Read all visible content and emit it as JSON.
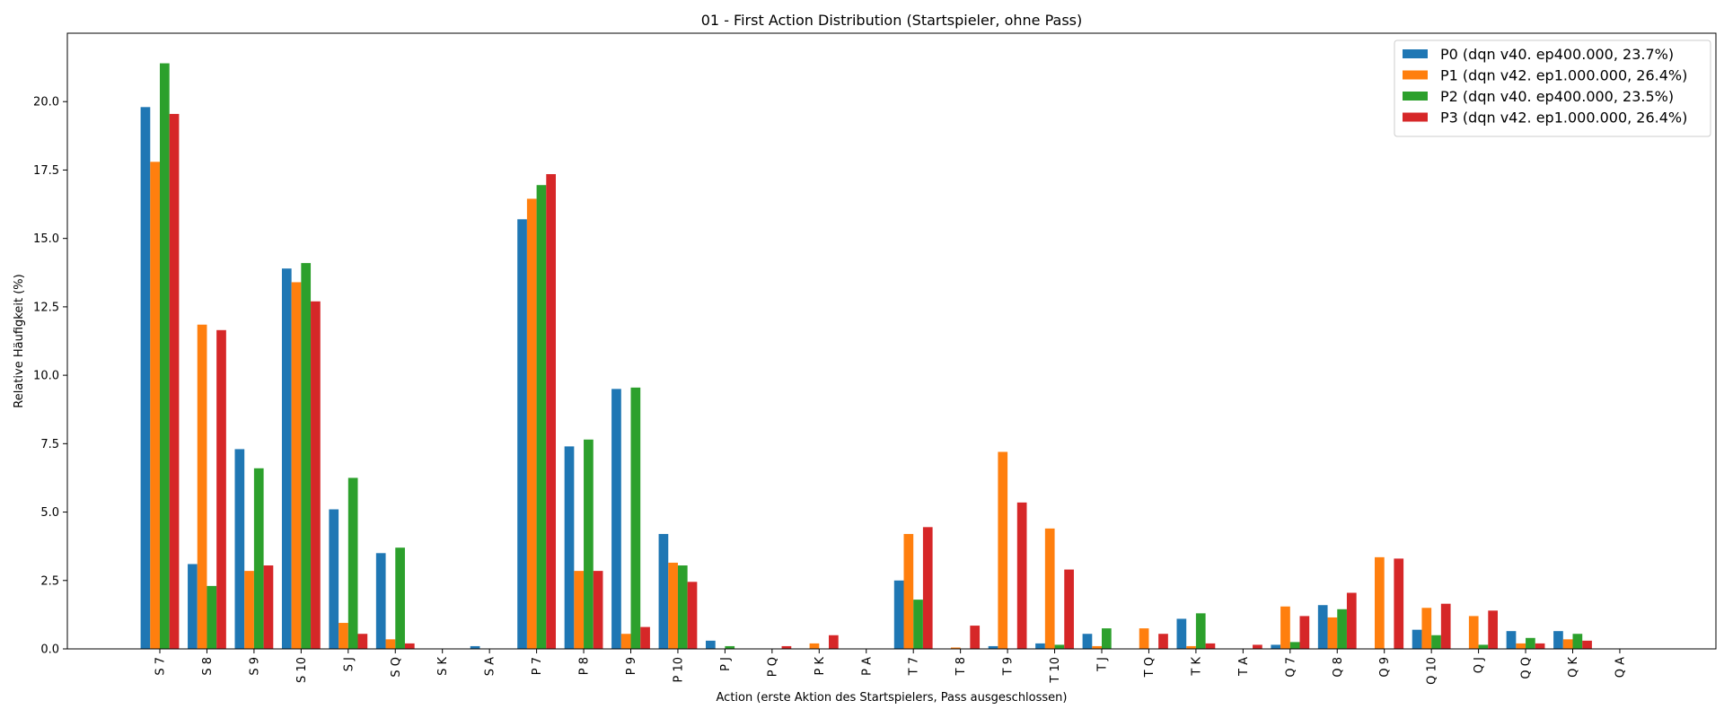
{
  "chart_data": {
    "type": "bar",
    "title": "01 - First Action Distribution (Startspieler, ohne Pass)",
    "xlabel": "Action (erste Aktion des Startspielers, Pass ausgeschlossen)",
    "ylabel": "Relative Häufigkeit (%)",
    "ylim": [
      0,
      22.5
    ],
    "yticks": [
      "0.0",
      "2.5",
      "5.0",
      "7.5",
      "10.0",
      "12.5",
      "15.0",
      "17.5",
      "20.0"
    ],
    "legend_position": "top-right",
    "grid": false,
    "categories": [
      "S 7",
      "S 8",
      "S 9",
      "S 10",
      "S J",
      "S Q",
      "S K",
      "S A",
      "P 7",
      "P 8",
      "P 9",
      "P 10",
      "P J",
      "P Q",
      "P K",
      "P A",
      "T 7",
      "T 8",
      "T 9",
      "T 10",
      "T J",
      "T Q",
      "T K",
      "T A",
      "Q 7",
      "Q 8",
      "Q 9",
      "Q 10",
      "Q J",
      "Q Q",
      "Q K",
      "Q A"
    ],
    "series": [
      {
        "name": "P0 (dqn v40. ep400.000, 23.7%)",
        "color": "#1f77b4",
        "values": [
          19.8,
          3.1,
          7.3,
          13.9,
          5.1,
          3.5,
          0,
          0.1,
          15.7,
          7.4,
          9.5,
          4.2,
          0.3,
          0,
          0,
          0,
          2.5,
          0,
          0.1,
          0.2,
          0.55,
          0,
          1.1,
          0,
          0.15,
          1.6,
          0,
          0.7,
          0,
          0.65,
          0.65,
          0
        ]
      },
      {
        "name": "P1 (dqn v42. ep1.000.000, 26.4%)",
        "color": "#ff7f0e",
        "values": [
          17.8,
          11.85,
          2.85,
          13.4,
          0.95,
          0.35,
          0,
          0,
          16.45,
          2.85,
          0.55,
          3.15,
          0,
          0,
          0.2,
          0,
          4.2,
          0.05,
          7.2,
          4.4,
          0.1,
          0.75,
          0.1,
          0,
          1.55,
          1.15,
          3.35,
          1.5,
          1.2,
          0.2,
          0.35,
          0
        ]
      },
      {
        "name": "P2 (dqn v40. ep400.000, 23.5%)",
        "color": "#2ca02c",
        "values": [
          21.4,
          2.3,
          6.6,
          14.1,
          6.25,
          3.7,
          0,
          0,
          16.95,
          7.65,
          9.55,
          3.05,
          0.1,
          0,
          0,
          0,
          1.8,
          0,
          0,
          0.15,
          0.75,
          0,
          1.3,
          0,
          0.25,
          1.45,
          0,
          0.5,
          0.15,
          0.4,
          0.55,
          0
        ]
      },
      {
        "name": "P3 (dqn v42. ep1.000.000, 26.4%)",
        "color": "#d62728",
        "values": [
          19.55,
          11.65,
          3.05,
          12.7,
          0.55,
          0.2,
          0,
          0,
          17.35,
          2.85,
          0.8,
          2.45,
          0,
          0.1,
          0.5,
          0,
          4.45,
          0.85,
          5.35,
          2.9,
          0,
          0.55,
          0.2,
          0.15,
          1.2,
          2.05,
          3.3,
          1.65,
          1.4,
          0.2,
          0.3,
          0
        ]
      }
    ]
  }
}
